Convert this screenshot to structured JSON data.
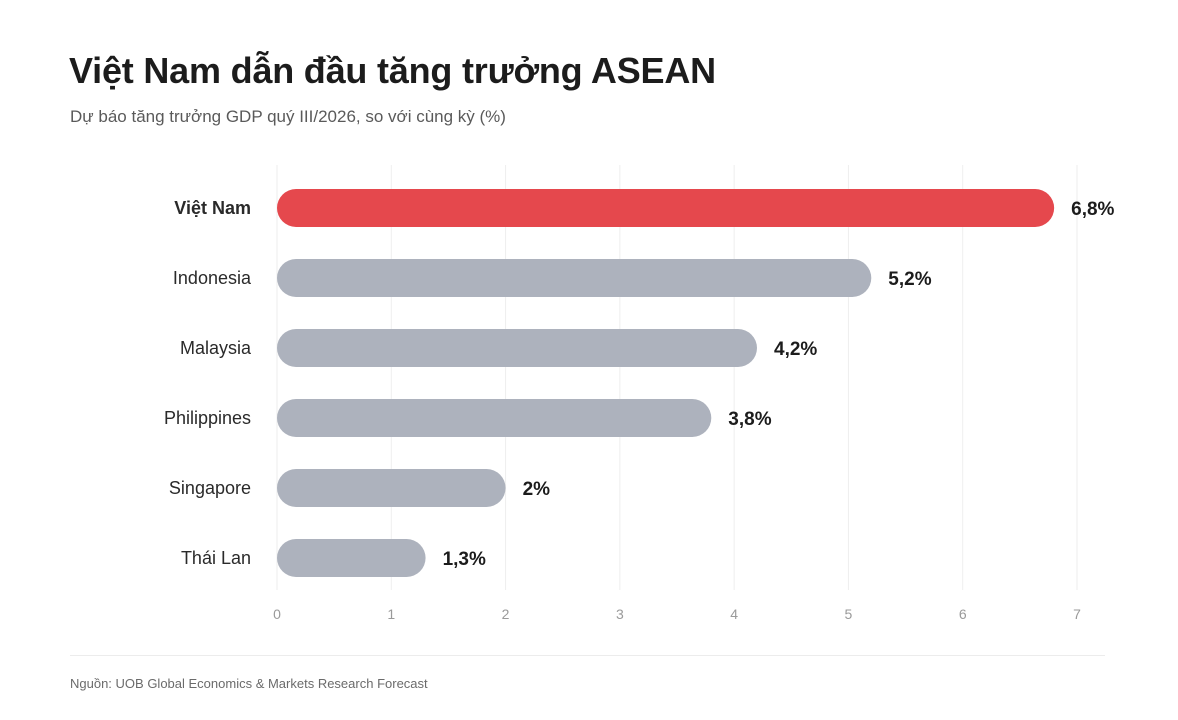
{
  "header": {
    "title": "Việt Nam dẫn đầu tăng trưởng ASEAN",
    "subtitle": "Dự báo tăng trưởng GDP quý III/2026, so với cùng kỳ (%)"
  },
  "footer": {
    "source": "Nguồn: UOB Global Economics & Markets Research Forecast"
  },
  "colors": {
    "highlight": "#e5484d",
    "bar": "#adb2bd",
    "grid": "#eeeeee",
    "tick": "#9a9a9a"
  },
  "chart_data": {
    "type": "bar",
    "orientation": "horizontal",
    "categories": [
      "Việt Nam",
      "Indonesia",
      "Malaysia",
      "Philippines",
      "Singapore",
      "Thái Lan"
    ],
    "values": [
      6.8,
      5.2,
      4.2,
      3.8,
      2,
      1.3
    ],
    "value_labels": [
      "6,8%",
      "5,2%",
      "4,2%",
      "3,8%",
      "2%",
      "1,3%"
    ],
    "highlight_index": 0,
    "xlim": [
      0,
      7
    ],
    "xticks": [
      "0",
      "1",
      "2",
      "3",
      "4",
      "5",
      "6",
      "7"
    ],
    "grid": true,
    "legend": "none"
  }
}
